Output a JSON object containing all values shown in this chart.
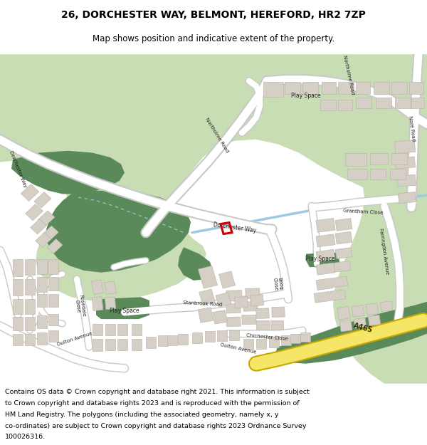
{
  "title_line1": "26, DORCHESTER WAY, BELMONT, HEREFORD, HR2 7ZP",
  "title_line2": "Map shows position and indicative extent of the property.",
  "footer": "Contains OS data © Crown copyright and database right 2021. This information is subject to Crown copyright and database rights 2023 and is reproduced with the permission of HM Land Registry. The polygons (including the associated geometry, namely x, y co-ordinates) are subject to Crown copyright and database rights 2023 Ordnance Survey 100026316.",
  "map_bg": "#f0ece6",
  "green_light": "#c9ddb5",
  "green_dark": "#5a8a5a",
  "road_white": "#ffffff",
  "road_outline": "#c8c8c8",
  "water_color": "#9ecae1",
  "building_color": "#d6cfc6",
  "building_outline": "#b8b0a8",
  "plot_color": "#cc0000",
  "title_fontsize": 10,
  "subtitle_fontsize": 8.5,
  "footer_fontsize": 6.8
}
